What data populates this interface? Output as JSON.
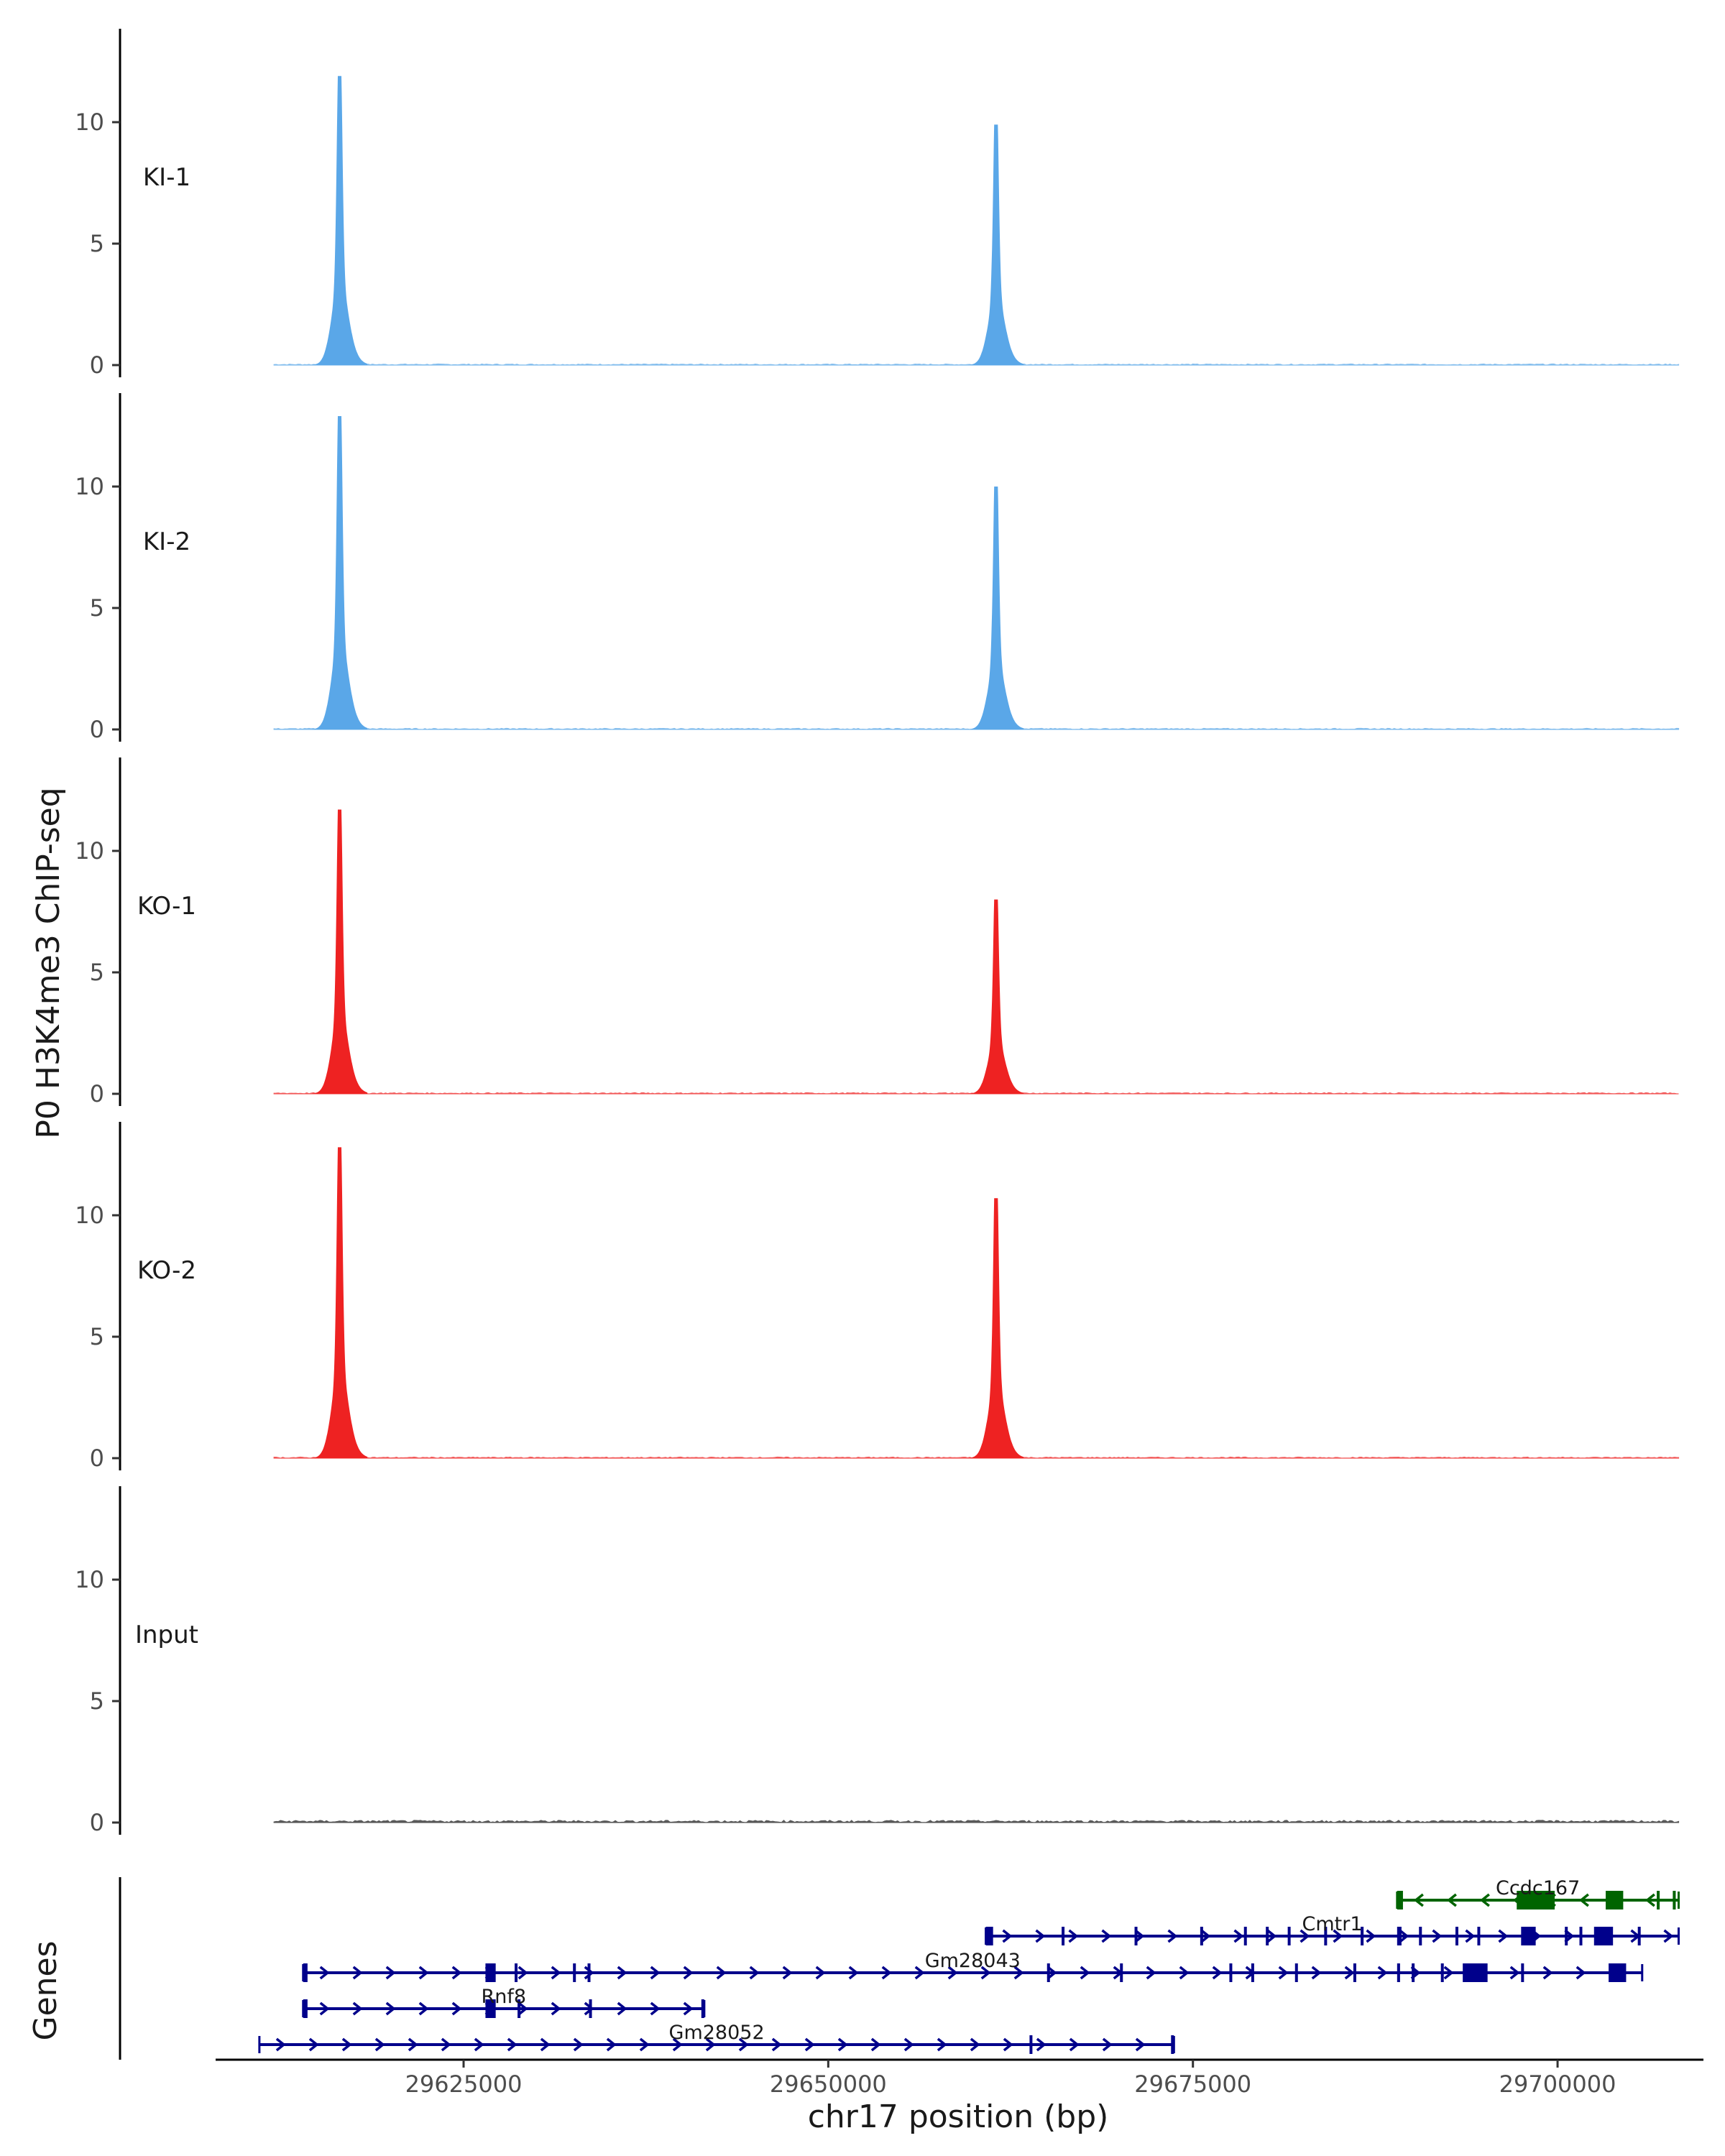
{
  "chart_data": {
    "type": "area",
    "title": "",
    "ylabel": "P0 H3K4me3 ChIP-seq",
    "genes_label": "Genes",
    "xlabel": "chr17 position (bp)",
    "xlim": [
      29608000,
      29710000
    ],
    "ylim": [
      0,
      13.5
    ],
    "y_ticks": [
      0,
      5,
      10
    ],
    "x_ticks": [
      29625000,
      29650000,
      29675000,
      29700000
    ],
    "x_tick_labels": [
      "29625000",
      "29650000",
      "29675000",
      "29700000"
    ],
    "track_start": 29612000,
    "track_end": 29708300,
    "peak_positions": [
      29616500,
      29661500
    ],
    "series": [
      {
        "name": "KI-1",
        "color": "#5aa7e8",
        "peaks": [
          11.9,
          9.9
        ]
      },
      {
        "name": "KI-2",
        "color": "#5aa7e8",
        "peaks": [
          12.9,
          10.0
        ]
      },
      {
        "name": "KO-1",
        "color": "#ee2222",
        "peaks": [
          11.7,
          8.0
        ]
      },
      {
        "name": "KO-2",
        "color": "#ee2222",
        "peaks": [
          12.8,
          10.7
        ]
      },
      {
        "name": "Input",
        "color": "#222222",
        "peaks": [
          0,
          0
        ]
      }
    ],
    "genes": [
      {
        "name": "Ccdc167",
        "strand": "-",
        "color": "#006400",
        "start": 29689000,
        "end": 29708300,
        "exons": [
          [
            29689000,
            29689400
          ],
          [
            29697200,
            29699800
          ],
          [
            29703300,
            29704500
          ],
          [
            29706800,
            29707000
          ],
          [
            29707900,
            29708100
          ]
        ]
      },
      {
        "name": "Cmtr1",
        "strand": "+",
        "color": "#00008b",
        "start": 29660800,
        "end": 29708300,
        "exons": [
          [
            29660800,
            29661300
          ],
          [
            29666000,
            29666100
          ],
          [
            29671000,
            29671100
          ],
          [
            29675500,
            29675600
          ],
          [
            29678500,
            29678600
          ],
          [
            29680000,
            29680100
          ],
          [
            29681500,
            29681600
          ],
          [
            29684000,
            29684100
          ],
          [
            29686500,
            29686700
          ],
          [
            29689000,
            29689300
          ],
          [
            29690500,
            29690600
          ],
          [
            29693000,
            29693100
          ],
          [
            29694500,
            29694600
          ],
          [
            29697500,
            29698500
          ],
          [
            29700500,
            29700600
          ],
          [
            29701500,
            29701600
          ],
          [
            29702500,
            29703800
          ],
          [
            29705500,
            29705600
          ]
        ]
      },
      {
        "name": "Gm28043",
        "strand": "+",
        "color": "#00008b",
        "start": 29614000,
        "end": 29705800,
        "exons": [
          [
            29614000,
            29614300
          ],
          [
            29626500,
            29627200
          ],
          [
            29628500,
            29628600
          ],
          [
            29632500,
            29632600
          ],
          [
            29633500,
            29633600
          ],
          [
            29665000,
            29665100
          ],
          [
            29670000,
            29670100
          ],
          [
            29677500,
            29677600
          ],
          [
            29679000,
            29679100
          ],
          [
            29682000,
            29682100
          ],
          [
            29686000,
            29686100
          ],
          [
            29689000,
            29689200
          ],
          [
            29690000,
            29690100
          ],
          [
            29692000,
            29692100
          ],
          [
            29693500,
            29695200
          ],
          [
            29697500,
            29697600
          ],
          [
            29703500,
            29704700
          ]
        ]
      },
      {
        "name": "Rnf8",
        "strand": "+",
        "color": "#00008b",
        "start": 29614000,
        "end": 29641500,
        "exons": [
          [
            29614000,
            29614300
          ],
          [
            29626500,
            29627200
          ],
          [
            29628700,
            29628900
          ],
          [
            29633600,
            29633700
          ],
          [
            29641300,
            29641500
          ]
        ]
      },
      {
        "name": "Gm28052",
        "strand": "+",
        "color": "#00008b",
        "start": 29611000,
        "end": 29673700,
        "exons": [
          [
            29663800,
            29663900
          ],
          [
            29673500,
            29673700
          ]
        ]
      }
    ]
  }
}
